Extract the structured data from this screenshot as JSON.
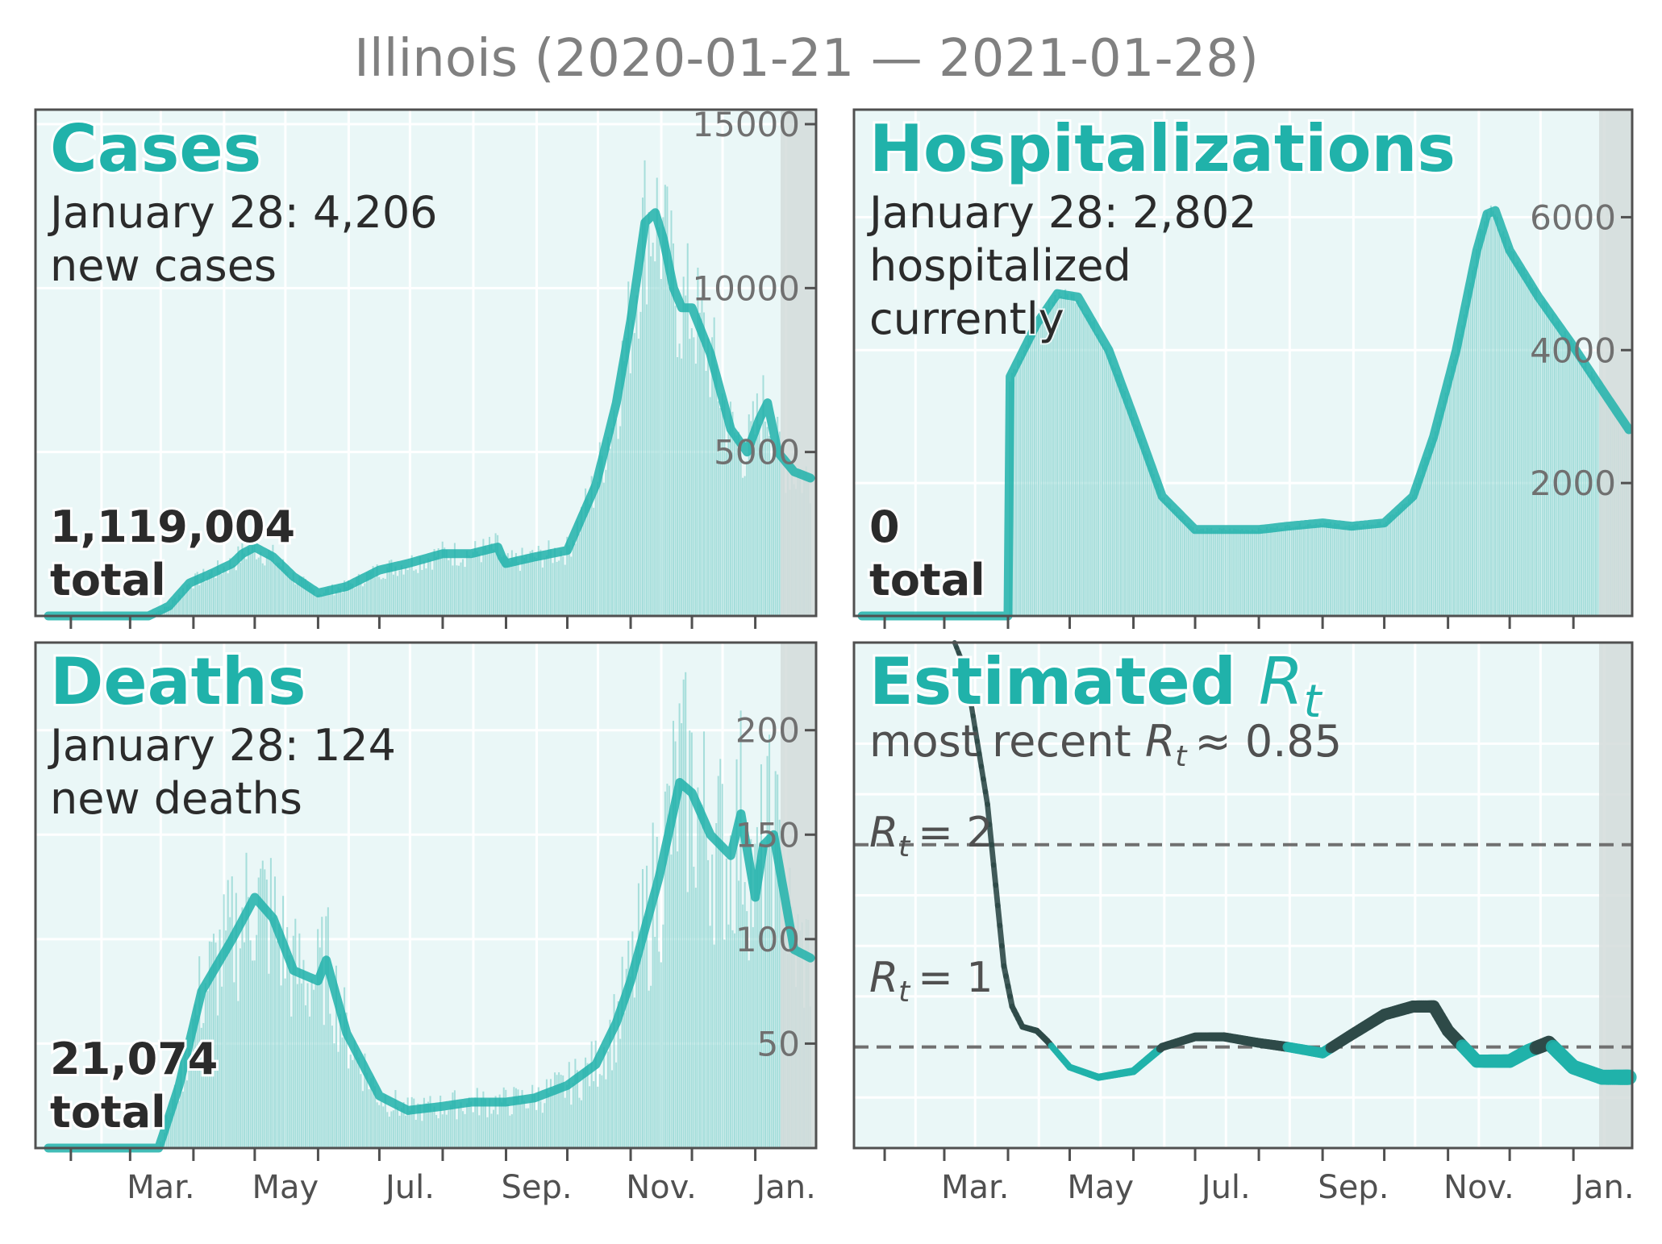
{
  "title": "Illinois (2020-01-21 — 2021-01-28)",
  "month_labels": [
    "Mar.",
    "May",
    "Jul.",
    "Sep.",
    "Nov.",
    "Jan."
  ],
  "colors": {
    "accent": "#20b2aa",
    "bar": "#8fd6d1",
    "panel_bg": "#eaf7f7",
    "shade": "#d3dcdb",
    "rt_dark": "#2e4a48",
    "dashed": "#707070"
  },
  "panels": {
    "cases": {
      "title": "Cases",
      "line1": "January 28: 4,206",
      "line2": "new cases",
      "total_value": "1,119,004",
      "total_word": "total",
      "yticks": [
        "5000",
        "10000",
        "15000"
      ]
    },
    "hosp": {
      "title": "Hospitalizations",
      "line1": "January 28: 2,802",
      "line2": "hospitalized",
      "line3": "currently",
      "total_value": "0",
      "total_word": "total",
      "yticks": [
        "2000",
        "4000",
        "6000"
      ]
    },
    "deaths": {
      "title": "Deaths",
      "line1": "January 28: 124",
      "line2": "new deaths",
      "total_value": "21,074",
      "total_word": "total",
      "yticks": [
        "50",
        "100",
        "150",
        "200"
      ]
    },
    "rt": {
      "title": "Estimated",
      "title_sym": "R",
      "title_sub": "t",
      "subtitle_pre": "most recent ",
      "subtitle_sym": "R",
      "subtitle_sub": "t",
      "subtitle_post": "≈ 0.85",
      "ref2": "= 2",
      "ref1": "= 1",
      "ref_sym": "R",
      "ref_sub": "t"
    }
  },
  "chart_data": [
    {
      "type": "bar",
      "panel": "Cases",
      "x_start": "2020-01-21",
      "x_end": "2021-01-28",
      "ylim": [
        0,
        15000
      ],
      "yticks": [
        5000,
        10000,
        15000
      ],
      "smoothed_series": {
        "dates": [
          "2020-01-21",
          "2020-03-10",
          "2020-03-20",
          "2020-03-30",
          "2020-04-10",
          "2020-04-20",
          "2020-04-25",
          "2020-05-01",
          "2020-05-10",
          "2020-05-20",
          "2020-06-01",
          "2020-06-15",
          "2020-07-01",
          "2020-07-15",
          "2020-08-01",
          "2020-08-15",
          "2020-08-28",
          "2020-08-30",
          "2020-09-01",
          "2020-09-15",
          "2020-10-01",
          "2020-10-15",
          "2020-10-25",
          "2020-11-01",
          "2020-11-08",
          "2020-11-13",
          "2020-11-17",
          "2020-11-22",
          "2020-11-26",
          "2020-12-01",
          "2020-12-10",
          "2020-12-20",
          "2020-12-28",
          "2021-01-03",
          "2021-01-07",
          "2021-01-12",
          "2021-01-20",
          "2021-01-28"
        ],
        "values": [
          0,
          0,
          300,
          1000,
          1300,
          1600,
          1900,
          2100,
          1800,
          1200,
          700,
          900,
          1400,
          1600,
          1900,
          1900,
          2100,
          1800,
          1600,
          1800,
          2000,
          4000,
          6500,
          9000,
          12000,
          12300,
          11500,
          10000,
          9400,
          9400,
          8000,
          5700,
          5000,
          6000,
          6500,
          5000,
          4400,
          4206
        ]
      }
    },
    {
      "type": "bar",
      "panel": "Hospitalizations",
      "x_start": "2020-01-21",
      "x_end": "2021-01-28",
      "ylim": [
        0,
        7400
      ],
      "yticks": [
        2000,
        4000,
        6000
      ],
      "smoothed_series": {
        "dates": [
          "2020-01-21",
          "2020-04-01",
          "2020-04-02",
          "2020-04-15",
          "2020-04-25",
          "2020-05-05",
          "2020-05-20",
          "2020-06-01",
          "2020-06-15",
          "2020-07-01",
          "2020-07-15",
          "2020-08-01",
          "2020-08-15",
          "2020-09-01",
          "2020-09-15",
          "2020-10-01",
          "2020-10-15",
          "2020-10-25",
          "2020-11-05",
          "2020-11-15",
          "2020-11-20",
          "2020-11-24",
          "2020-12-01",
          "2020-12-15",
          "2020-12-31",
          "2021-01-15",
          "2021-01-28"
        ],
        "values": [
          0,
          0,
          3600,
          4400,
          4850,
          4800,
          4000,
          3000,
          1800,
          1300,
          1300,
          1300,
          1350,
          1400,
          1350,
          1400,
          1800,
          2700,
          4000,
          5500,
          6050,
          6100,
          5500,
          4800,
          4100,
          3400,
          2802
        ]
      }
    },
    {
      "type": "bar",
      "panel": "Deaths",
      "x_start": "2020-01-21",
      "x_end": "2021-01-28",
      "ylim": [
        0,
        235
      ],
      "yticks": [
        50,
        100,
        150,
        200
      ],
      "smoothed_series": {
        "dates": [
          "2020-01-21",
          "2020-03-15",
          "2020-03-25",
          "2020-04-05",
          "2020-04-20",
          "2020-05-01",
          "2020-05-10",
          "2020-05-20",
          "2020-06-01",
          "2020-06-05",
          "2020-06-15",
          "2020-07-01",
          "2020-07-15",
          "2020-08-01",
          "2020-08-15",
          "2020-09-01",
          "2020-09-15",
          "2020-10-01",
          "2020-10-15",
          "2020-10-25",
          "2020-11-01",
          "2020-11-15",
          "2020-11-25",
          "2020-12-01",
          "2020-12-10",
          "2020-12-20",
          "2020-12-25",
          "2021-01-01",
          "2021-01-05",
          "2021-01-10",
          "2021-01-20",
          "2021-01-28"
        ],
        "values": [
          0,
          0,
          30,
          75,
          100,
          120,
          110,
          85,
          80,
          90,
          55,
          25,
          18,
          20,
          22,
          22,
          24,
          30,
          40,
          60,
          80,
          130,
          175,
          170,
          150,
          140,
          160,
          120,
          145,
          150,
          95,
          91
        ]
      }
    },
    {
      "type": "line",
      "panel": "Estimated Rt",
      "x_start": "2020-01-21",
      "x_end": "2021-01-28",
      "ylim": [
        0.5,
        3.0
      ],
      "reference_lines": [
        1,
        2
      ],
      "series": {
        "dates": [
          "2020-03-06",
          "2020-03-10",
          "2020-03-14",
          "2020-03-18",
          "2020-03-22",
          "2020-03-26",
          "2020-03-30",
          "2020-04-03",
          "2020-04-08",
          "2020-04-15",
          "2020-04-20",
          "2020-05-01",
          "2020-05-15",
          "2020-06-01",
          "2020-06-15",
          "2020-07-01",
          "2020-07-15",
          "2020-08-01",
          "2020-08-15",
          "2020-09-01",
          "2020-09-15",
          "2020-10-01",
          "2020-10-15",
          "2020-10-25",
          "2020-11-01",
          "2020-11-15",
          "2020-12-01",
          "2020-12-10",
          "2020-12-20",
          "2021-01-01",
          "2021-01-15",
          "2021-01-28"
        ],
        "values": [
          3.0,
          2.9,
          2.7,
          2.45,
          2.2,
          1.8,
          1.4,
          1.2,
          1.1,
          1.08,
          1.03,
          0.9,
          0.85,
          0.88,
          1.0,
          1.05,
          1.05,
          1.02,
          1.0,
          0.97,
          1.06,
          1.16,
          1.2,
          1.2,
          1.08,
          0.93,
          0.93,
          0.98,
          1.02,
          0.9,
          0.85,
          0.85
        ]
      },
      "latest": 0.85
    }
  ]
}
